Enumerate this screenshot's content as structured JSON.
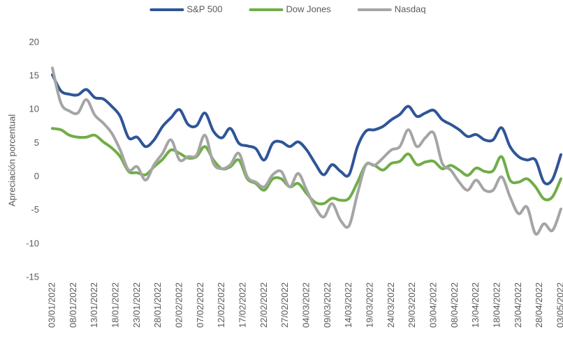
{
  "chart_data": {
    "type": "line",
    "ylabel": "Apreciación porcentual",
    "x": [
      "03/01/2022",
      "05/01/2022",
      "07/01/2022",
      "09/01/2022",
      "11/01/2022",
      "13/01/2022",
      "15/01/2022",
      "17/01/2022",
      "19/01/2022",
      "21/01/2022",
      "23/01/2022",
      "25/01/2022",
      "27/01/2022",
      "29/01/2022",
      "31/01/2022",
      "02/02/2022",
      "04/02/2022",
      "06/02/2022",
      "08/02/2022",
      "10/02/2022",
      "12/02/2022",
      "14/02/2022",
      "16/02/2022",
      "18/02/2022",
      "20/02/2022",
      "22/02/2022",
      "24/02/2022",
      "26/02/2022",
      "28/02/2022",
      "02/03/2022",
      "04/03/2022",
      "06/03/2022",
      "08/03/2022",
      "10/03/2022",
      "12/03/2022",
      "14/03/2022",
      "16/03/2022",
      "18/03/2022",
      "20/03/2022",
      "22/03/2022",
      "24/03/2022",
      "26/03/2022",
      "28/03/2022",
      "30/03/2022",
      "01/04/2022",
      "03/04/2022",
      "05/04/2022",
      "07/04/2022",
      "09/04/2022",
      "11/04/2022",
      "13/04/2022",
      "15/04/2022",
      "17/04/2022",
      "19/04/2022",
      "21/04/2022",
      "23/04/2022",
      "25/04/2022",
      "27/04/2022",
      "29/04/2022",
      "01/05/2022",
      "03/05/2022"
    ],
    "xlim": [
      "03/01/2022",
      "03/05/2022"
    ],
    "xticks": [
      "03/01/2022",
      "08/01/2022",
      "13/01/2022",
      "18/01/2022",
      "23/01/2022",
      "28/01/2022",
      "02/02/2022",
      "07/02/2022",
      "12/02/2022",
      "17/02/2022",
      "22/02/2022",
      "27/02/2022",
      "04/03/2022",
      "09/03/2022",
      "14/03/2022",
      "19/03/2022",
      "24/03/2022",
      "29/03/2022",
      "03/04/2022",
      "08/04/2022",
      "13/04/2022",
      "18/04/2022",
      "23/04/2022",
      "28/04/2022",
      "03/05/2022"
    ],
    "ylim": [
      -15,
      20
    ],
    "yticks": [
      -15,
      -10,
      -5,
      0,
      5,
      10,
      15,
      20
    ],
    "legend": "top",
    "series": [
      {
        "name": "S&P 500",
        "color": "#2f5597",
        "values": [
          15.2,
          12.8,
          12.3,
          12.2,
          13.0,
          11.8,
          11.6,
          10.5,
          9.0,
          5.8,
          5.9,
          4.5,
          5.5,
          7.5,
          8.8,
          10.0,
          7.8,
          7.6,
          9.5,
          6.8,
          5.8,
          7.2,
          5.0,
          4.6,
          4.2,
          2.5,
          5.0,
          5.2,
          4.5,
          5.2,
          4.0,
          2.0,
          0.3,
          1.8,
          0.8,
          0.3,
          4.5,
          6.8,
          7.0,
          7.5,
          8.5,
          9.3,
          10.5,
          9.0,
          9.5,
          9.9,
          8.5,
          7.8,
          7.0,
          6.0,
          6.3,
          5.5,
          5.5,
          7.3,
          4.5,
          3.0,
          2.5,
          2.5,
          -0.8,
          -0.4,
          3.3
        ]
      },
      {
        "name": "Dow Jones",
        "color": "#70ad47",
        "values": [
          7.2,
          7.0,
          6.2,
          5.9,
          5.9,
          6.2,
          5.2,
          4.3,
          3.0,
          0.8,
          0.6,
          0.3,
          1.5,
          2.6,
          4.0,
          3.5,
          2.8,
          3.0,
          4.5,
          2.5,
          1.2,
          1.5,
          2.5,
          -0.3,
          -1.0,
          -2.0,
          -0.3,
          -0.3,
          -1.5,
          -1.0,
          -2.5,
          -3.8,
          -4.0,
          -3.2,
          -3.5,
          -3.2,
          -0.8,
          1.8,
          1.7,
          1.0,
          2.0,
          2.3,
          3.4,
          1.8,
          2.2,
          2.3,
          1.2,
          1.7,
          1.0,
          0.2,
          1.3,
          0.8,
          0.9,
          3.0,
          -0.5,
          -0.8,
          -0.3,
          -1.5,
          -3.3,
          -3.0,
          -0.3
        ]
      },
      {
        "name": "Nasdaq",
        "color": "#a5a5a5",
        "values": [
          16.2,
          11.0,
          9.8,
          9.5,
          11.5,
          9.2,
          8.0,
          6.5,
          4.0,
          1.0,
          1.5,
          -0.5,
          1.8,
          3.5,
          5.5,
          2.5,
          3.0,
          3.2,
          6.2,
          2.0,
          1.2,
          1.8,
          3.5,
          0.0,
          -0.8,
          -1.5,
          0.3,
          0.8,
          -1.5,
          0.5,
          -2.0,
          -4.5,
          -6.0,
          -4.0,
          -6.5,
          -7.3,
          -2.5,
          1.8,
          1.7,
          2.8,
          4.0,
          4.5,
          7.0,
          4.5,
          5.8,
          6.5,
          2.0,
          1.0,
          -0.8,
          -2.0,
          -0.5,
          -2.0,
          -2.0,
          0.0,
          -3.0,
          -5.5,
          -4.5,
          -8.5,
          -7.0,
          -8.0,
          -4.8
        ]
      }
    ]
  }
}
